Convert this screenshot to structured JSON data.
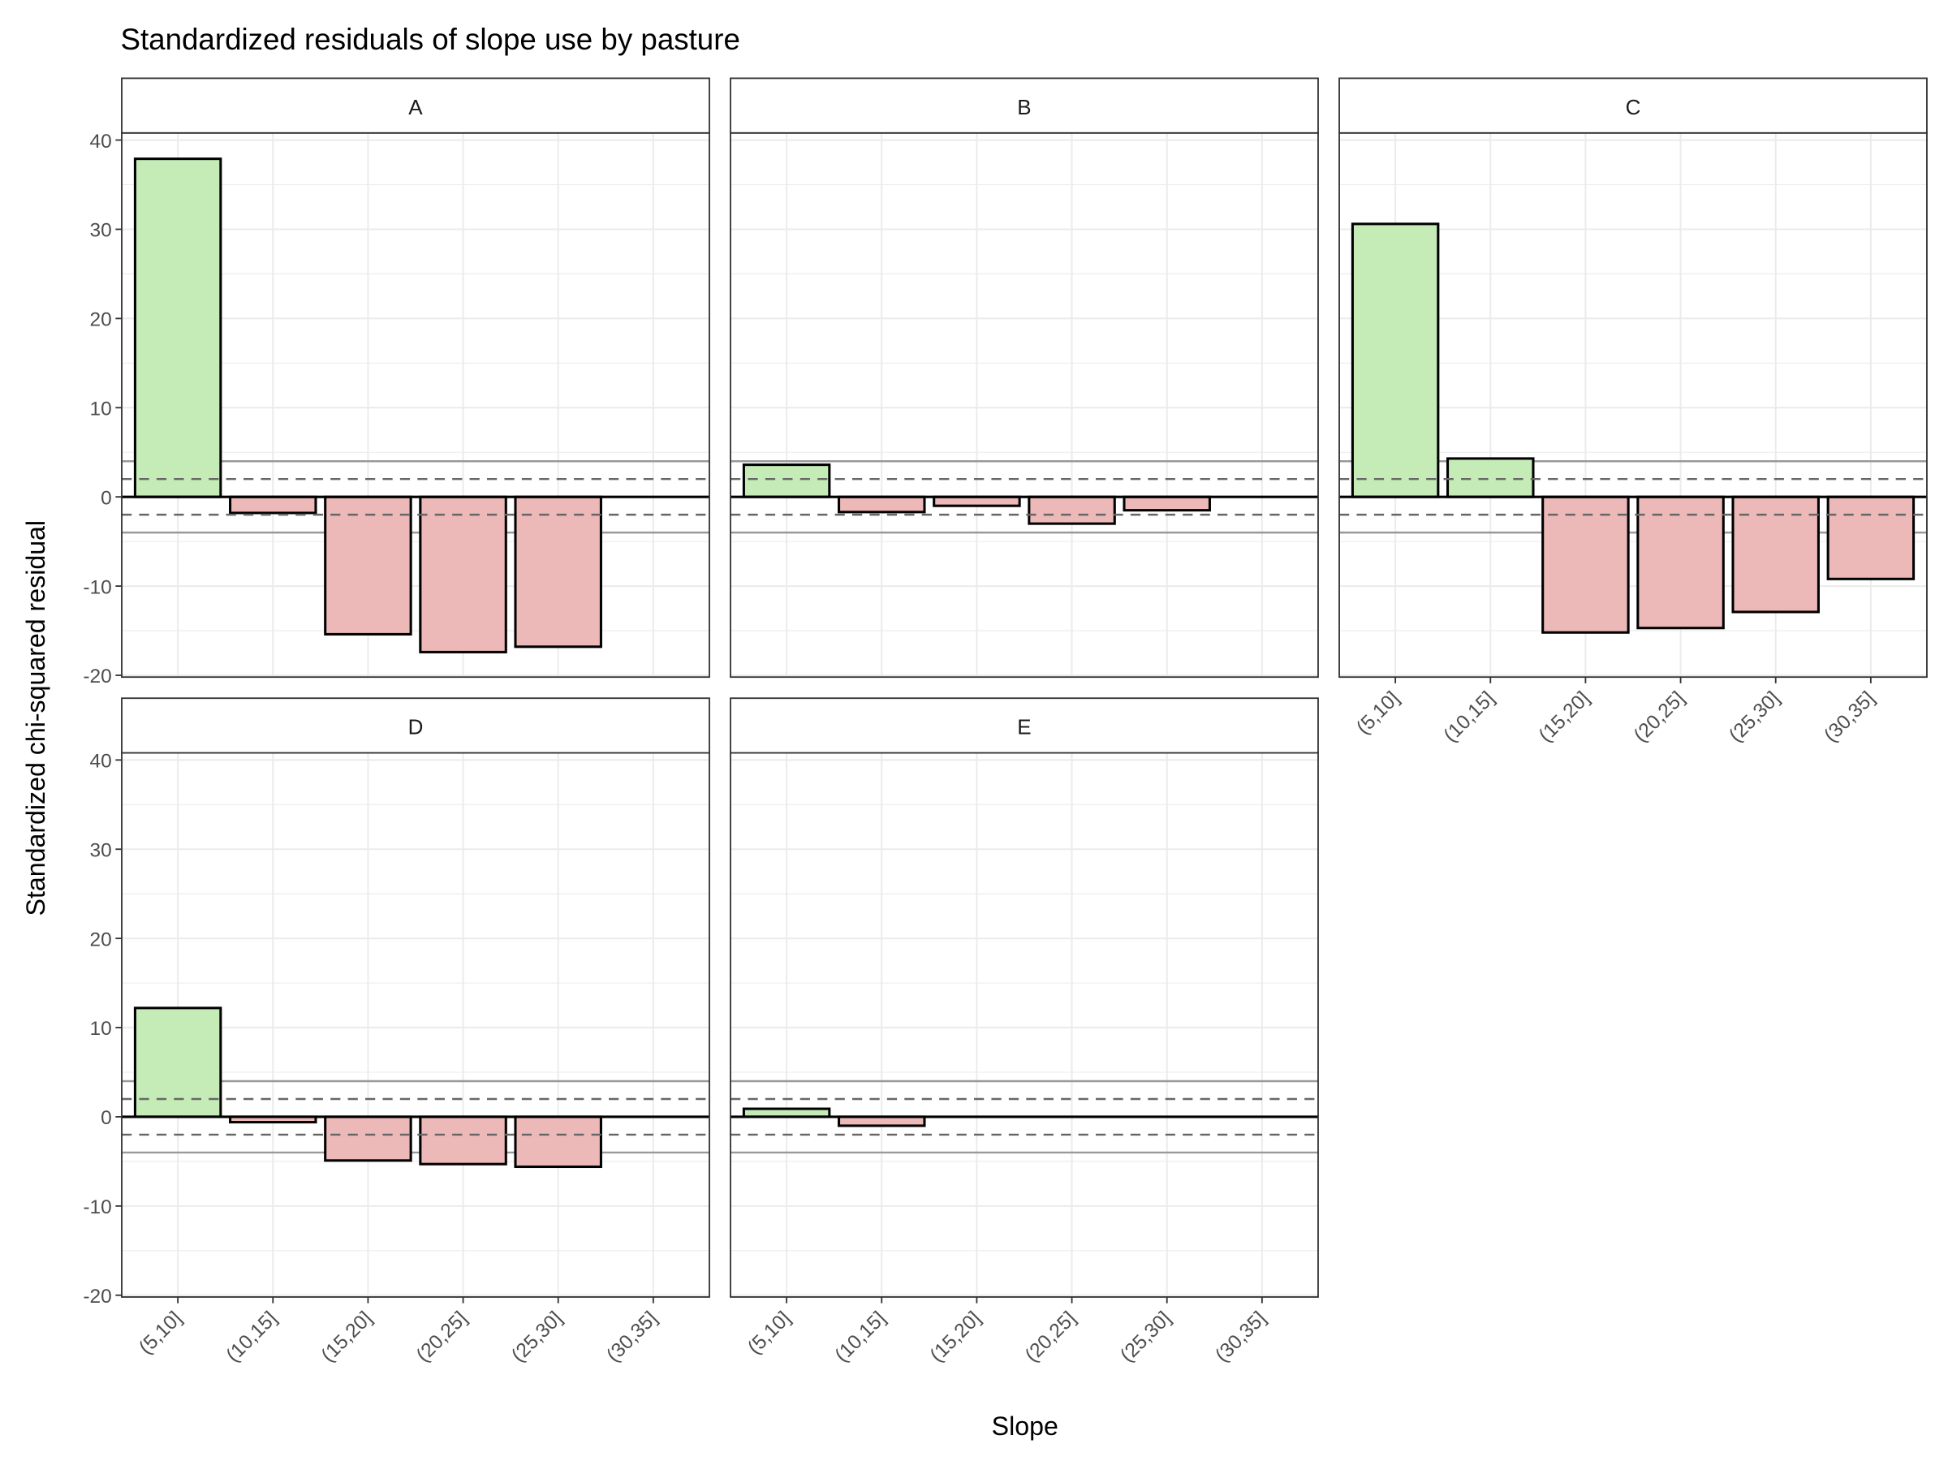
{
  "chart_data": {
    "type": "bar",
    "title": "Standardized residuals of slope use by pasture",
    "xlabel": "Slope",
    "ylabel": "Standardized chi-squared residual",
    "categories": [
      "(5,10]",
      "(10,15]",
      "(15,20]",
      "(20,25]",
      "(25,30]",
      "(30,35]"
    ],
    "ylim": [
      -20.2,
      40.8
    ],
    "yticks": [
      -20,
      -10,
      0,
      10,
      20,
      30,
      40
    ],
    "grid": true,
    "reference_lines": {
      "dashed": [
        2,
        -2
      ],
      "solid_grey": [
        4,
        -4
      ],
      "zero": 0
    },
    "colors": {
      "positive": "#c5ecb7",
      "negative": "#ecb8b8",
      "outline": "#000000",
      "dashed": "#666666",
      "solid_grey": "#999999"
    },
    "facets": [
      {
        "label": "A",
        "values": [
          37.9,
          -1.8,
          -15.4,
          -17.4,
          -16.8,
          null
        ]
      },
      {
        "label": "B",
        "values": [
          3.6,
          -1.7,
          -1.0,
          -3.0,
          -1.5,
          null
        ]
      },
      {
        "label": "C",
        "values": [
          30.6,
          4.3,
          -15.2,
          -14.7,
          -12.9,
          -9.2
        ]
      },
      {
        "label": "D",
        "values": [
          12.2,
          -0.6,
          -4.9,
          -5.3,
          -5.6,
          null
        ]
      },
      {
        "label": "E",
        "values": [
          0.9,
          -1.0,
          null,
          null,
          null,
          null
        ]
      }
    ]
  }
}
